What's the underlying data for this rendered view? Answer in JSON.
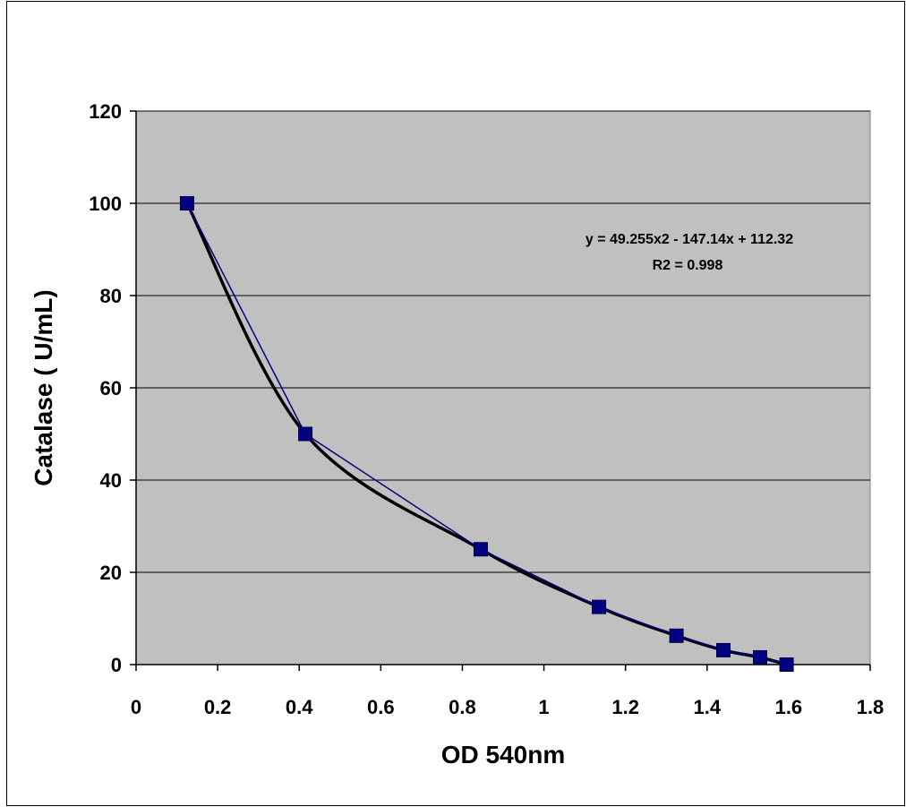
{
  "chart_data": {
    "type": "scatter",
    "title": "",
    "xlabel": "OD 540nm",
    "ylabel": "Catalase ( U/mL)",
    "xlim": [
      0,
      1.8
    ],
    "ylim": [
      0,
      120
    ],
    "x_ticks": [
      "0",
      "0.2",
      "0.4",
      "0.6",
      "0.8",
      "1",
      "1.2",
      "1.4",
      "1.6",
      "1.8"
    ],
    "y_ticks": [
      "0",
      "20",
      "40",
      "60",
      "80",
      "100",
      "120"
    ],
    "grid": "horizontal",
    "series": [
      {
        "x": [
          0.125,
          0.415,
          0.845,
          1.135,
          1.325,
          1.44,
          1.53,
          1.595
        ],
        "y": [
          100,
          50,
          25,
          12.5,
          6.25,
          3.125,
          1.5625,
          0
        ],
        "marker": "square",
        "color": "#000080",
        "line": true
      }
    ],
    "trendline": {
      "type": "polynomial",
      "color": "#000000",
      "equation": "y = 49.255x2 - 147.14x + 112.32",
      "r2_label": "R2 = 0.998"
    },
    "plot_background": "#c0c0c0"
  }
}
